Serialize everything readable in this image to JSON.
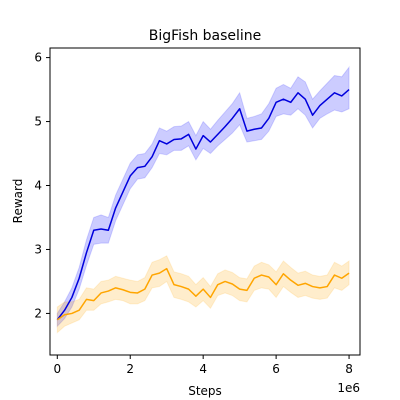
{
  "chart_data": {
    "type": "line",
    "title": "BigFish baseline",
    "xlabel": "Steps",
    "ylabel": "Reward",
    "x_offset_label": "1e6",
    "xlim": [
      -0.2,
      8.3
    ],
    "ylim": [
      1.35,
      6.15
    ],
    "xticks": [
      0,
      2,
      4,
      6,
      8
    ],
    "xtick_labels": [
      "0",
      "2",
      "4",
      "6",
      "8"
    ],
    "yticks": [
      2,
      3,
      4,
      5,
      6
    ],
    "ytick_labels": [
      "2",
      "3",
      "4",
      "5",
      "6"
    ],
    "grid": false,
    "legend": "none",
    "x": [
      0,
      0.2,
      0.4,
      0.6,
      0.8,
      1.0,
      1.2,
      1.4,
      1.6,
      1.8,
      2.0,
      2.2,
      2.4,
      2.6,
      2.8,
      3.0,
      3.2,
      3.4,
      3.6,
      3.8,
      4.0,
      4.2,
      4.4,
      4.6,
      4.8,
      5.0,
      5.2,
      5.4,
      5.6,
      5.8,
      6.0,
      6.2,
      6.4,
      6.6,
      6.8,
      7.0,
      7.2,
      7.4,
      7.6,
      7.8,
      8.0
    ],
    "series": [
      {
        "color": "#0000dd",
        "band_color": "#0000ff",
        "values": [
          1.9,
          2.05,
          2.25,
          2.55,
          2.95,
          3.3,
          3.32,
          3.3,
          3.65,
          3.9,
          4.15,
          4.28,
          4.3,
          4.45,
          4.7,
          4.65,
          4.72,
          4.73,
          4.8,
          4.57,
          4.78,
          4.68,
          4.8,
          4.92,
          5.05,
          5.2,
          4.85,
          4.88,
          4.9,
          5.05,
          5.3,
          5.35,
          5.3,
          5.45,
          5.35,
          5.1,
          5.25,
          5.35,
          5.45,
          5.4,
          5.5
        ],
        "lower": [
          1.8,
          1.92,
          2.1,
          2.38,
          2.75,
          3.08,
          3.1,
          3.1,
          3.45,
          3.7,
          3.95,
          4.1,
          4.12,
          4.28,
          4.5,
          4.48,
          4.55,
          4.55,
          4.62,
          4.4,
          4.58,
          4.5,
          4.62,
          4.72,
          4.82,
          4.95,
          4.68,
          4.7,
          4.72,
          4.85,
          5.08,
          5.12,
          5.1,
          5.2,
          5.1,
          4.9,
          5.05,
          5.12,
          5.18,
          5.15,
          5.2
        ],
        "upper": [
          2.0,
          2.18,
          2.4,
          2.72,
          3.15,
          3.5,
          3.54,
          3.5,
          3.85,
          4.1,
          4.35,
          4.48,
          4.5,
          4.65,
          4.9,
          4.85,
          4.92,
          4.93,
          5.0,
          4.78,
          5.0,
          4.88,
          5.02,
          5.15,
          5.28,
          5.45,
          5.05,
          5.08,
          5.12,
          5.28,
          5.52,
          5.58,
          5.52,
          5.7,
          5.62,
          5.35,
          5.48,
          5.6,
          5.72,
          5.7,
          5.85
        ]
      },
      {
        "color": "#ffa500",
        "band_color": "#ffa500",
        "values": [
          1.9,
          1.98,
          2.0,
          2.05,
          2.22,
          2.2,
          2.32,
          2.35,
          2.4,
          2.37,
          2.33,
          2.32,
          2.38,
          2.6,
          2.63,
          2.7,
          2.45,
          2.42,
          2.38,
          2.27,
          2.38,
          2.25,
          2.45,
          2.5,
          2.46,
          2.38,
          2.36,
          2.55,
          2.6,
          2.57,
          2.45,
          2.62,
          2.52,
          2.44,
          2.47,
          2.42,
          2.4,
          2.42,
          2.6,
          2.55,
          2.63
        ],
        "lower": [
          1.7,
          1.8,
          1.85,
          1.9,
          2.05,
          2.05,
          2.15,
          2.18,
          2.22,
          2.2,
          2.15,
          2.15,
          2.2,
          2.4,
          2.42,
          2.5,
          2.25,
          2.22,
          2.18,
          2.1,
          2.2,
          2.08,
          2.28,
          2.32,
          2.28,
          2.2,
          2.18,
          2.36,
          2.4,
          2.38,
          2.25,
          2.42,
          2.33,
          2.25,
          2.28,
          2.24,
          2.22,
          2.24,
          2.4,
          2.36,
          2.45
        ],
        "upper": [
          2.1,
          2.18,
          2.18,
          2.22,
          2.4,
          2.38,
          2.5,
          2.52,
          2.58,
          2.55,
          2.52,
          2.5,
          2.56,
          2.8,
          2.84,
          2.9,
          2.65,
          2.62,
          2.58,
          2.45,
          2.56,
          2.42,
          2.62,
          2.68,
          2.64,
          2.56,
          2.54,
          2.74,
          2.8,
          2.76,
          2.65,
          2.82,
          2.72,
          2.63,
          2.66,
          2.6,
          2.58,
          2.6,
          2.8,
          2.74,
          2.82
        ]
      }
    ]
  }
}
